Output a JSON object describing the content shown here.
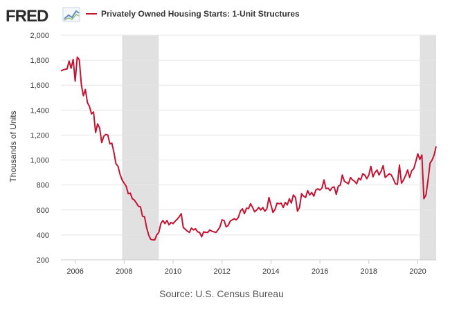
{
  "header": {
    "logo_text": "FRED",
    "logo_icon": "line-chart-icon"
  },
  "chart_data": {
    "type": "line",
    "title": "",
    "xlabel": "",
    "ylabel": "Thousands of Units",
    "series": [
      {
        "name": "Privately Owned Housing Starts: 1-Unit Structures",
        "color": "#c41230",
        "points": [
          [
            "2005-06",
            1713
          ],
          [
            "2005-07",
            1722
          ],
          [
            "2005-08",
            1727
          ],
          [
            "2005-09",
            1729
          ],
          [
            "2005-10",
            1793
          ],
          [
            "2005-11",
            1735
          ],
          [
            "2005-12",
            1806
          ],
          [
            "2006-01",
            1632
          ],
          [
            "2006-02",
            1825
          ],
          [
            "2006-03",
            1805
          ],
          [
            "2006-04",
            1605
          ],
          [
            "2006-05",
            1515
          ],
          [
            "2006-06",
            1565
          ],
          [
            "2006-07",
            1460
          ],
          [
            "2006-08",
            1430
          ],
          [
            "2006-09",
            1370
          ],
          [
            "2006-10",
            1385
          ],
          [
            "2006-11",
            1220
          ],
          [
            "2006-12",
            1290
          ],
          [
            "2007-01",
            1255
          ],
          [
            "2007-02",
            1140
          ],
          [
            "2007-03",
            1190
          ],
          [
            "2007-04",
            1205
          ],
          [
            "2007-05",
            1200
          ],
          [
            "2007-06",
            1130
          ],
          [
            "2007-07",
            1135
          ],
          [
            "2007-08",
            1060
          ],
          [
            "2007-09",
            970
          ],
          [
            "2007-10",
            950
          ],
          [
            "2007-11",
            885
          ],
          [
            "2007-12",
            840
          ],
          [
            "2008-01",
            815
          ],
          [
            "2008-02",
            790
          ],
          [
            "2008-03",
            730
          ],
          [
            "2008-04",
            735
          ],
          [
            "2008-05",
            690
          ],
          [
            "2008-06",
            680
          ],
          [
            "2008-07",
            655
          ],
          [
            "2008-08",
            630
          ],
          [
            "2008-09",
            625
          ],
          [
            "2008-10",
            550
          ],
          [
            "2008-11",
            545
          ],
          [
            "2008-12",
            460
          ],
          [
            "2009-01",
            400
          ],
          [
            "2009-02",
            365
          ],
          [
            "2009-03",
            360
          ],
          [
            "2009-04",
            360
          ],
          [
            "2009-05",
            400
          ],
          [
            "2009-06",
            420
          ],
          [
            "2009-07",
            490
          ],
          [
            "2009-08",
            515
          ],
          [
            "2009-09",
            490
          ],
          [
            "2009-10",
            515
          ],
          [
            "2009-11",
            480
          ],
          [
            "2009-12",
            500
          ],
          [
            "2010-01",
            490
          ],
          [
            "2010-02",
            510
          ],
          [
            "2010-03",
            525
          ],
          [
            "2010-04",
            545
          ],
          [
            "2010-05",
            570
          ],
          [
            "2010-06",
            460
          ],
          [
            "2010-07",
            445
          ],
          [
            "2010-08",
            430
          ],
          [
            "2010-09",
            420
          ],
          [
            "2010-10",
            455
          ],
          [
            "2010-11",
            440
          ],
          [
            "2010-12",
            450
          ],
          [
            "2011-01",
            425
          ],
          [
            "2011-02",
            420
          ],
          [
            "2011-03",
            385
          ],
          [
            "2011-04",
            425
          ],
          [
            "2011-05",
            420
          ],
          [
            "2011-06",
            420
          ],
          [
            "2011-07",
            440
          ],
          [
            "2011-08",
            430
          ],
          [
            "2011-09",
            425
          ],
          [
            "2011-10",
            420
          ],
          [
            "2011-11",
            440
          ],
          [
            "2011-12",
            465
          ],
          [
            "2012-01",
            520
          ],
          [
            "2012-02",
            515
          ],
          [
            "2012-03",
            465
          ],
          [
            "2012-04",
            475
          ],
          [
            "2012-05",
            510
          ],
          [
            "2012-06",
            520
          ],
          [
            "2012-07",
            530
          ],
          [
            "2012-08",
            520
          ],
          [
            "2012-09",
            540
          ],
          [
            "2012-10",
            590
          ],
          [
            "2012-11",
            610
          ],
          [
            "2012-12",
            570
          ],
          [
            "2013-01",
            615
          ],
          [
            "2013-02",
            610
          ],
          [
            "2013-03",
            650
          ],
          [
            "2013-04",
            620
          ],
          [
            "2013-05",
            585
          ],
          [
            "2013-06",
            600
          ],
          [
            "2013-07",
            620
          ],
          [
            "2013-08",
            600
          ],
          [
            "2013-09",
            620
          ],
          [
            "2013-10",
            590
          ],
          [
            "2013-11",
            610
          ],
          [
            "2013-12",
            700
          ],
          [
            "2014-01",
            640
          ],
          [
            "2014-02",
            580
          ],
          [
            "2014-03",
            605
          ],
          [
            "2014-04",
            655
          ],
          [
            "2014-05",
            650
          ],
          [
            "2014-06",
            655
          ],
          [
            "2014-07",
            620
          ],
          [
            "2014-08",
            660
          ],
          [
            "2014-09",
            640
          ],
          [
            "2014-10",
            690
          ],
          [
            "2014-11",
            655
          ],
          [
            "2014-12",
            720
          ],
          [
            "2015-01",
            700
          ],
          [
            "2015-02",
            590
          ],
          [
            "2015-03",
            620
          ],
          [
            "2015-04",
            730
          ],
          [
            "2015-05",
            710
          ],
          [
            "2015-06",
            700
          ],
          [
            "2015-07",
            755
          ],
          [
            "2015-08",
            720
          ],
          [
            "2015-09",
            740
          ],
          [
            "2015-10",
            710
          ],
          [
            "2015-11",
            760
          ],
          [
            "2015-12",
            770
          ],
          [
            "2016-01",
            760
          ],
          [
            "2016-02",
            775
          ],
          [
            "2016-03",
            840
          ],
          [
            "2016-04",
            770
          ],
          [
            "2016-05",
            775
          ],
          [
            "2016-06",
            755
          ],
          [
            "2016-07",
            780
          ],
          [
            "2016-08",
            785
          ],
          [
            "2016-09",
            725
          ],
          [
            "2016-10",
            790
          ],
          [
            "2016-11",
            800
          ],
          [
            "2016-12",
            880
          ],
          [
            "2017-01",
            830
          ],
          [
            "2017-02",
            820
          ],
          [
            "2017-03",
            810
          ],
          [
            "2017-04",
            860
          ],
          [
            "2017-05",
            840
          ],
          [
            "2017-06",
            830
          ],
          [
            "2017-07",
            810
          ],
          [
            "2017-08",
            855
          ],
          [
            "2017-09",
            840
          ],
          [
            "2017-10",
            890
          ],
          [
            "2017-11",
            880
          ],
          [
            "2017-12",
            850
          ],
          [
            "2018-01",
            880
          ],
          [
            "2018-02",
            950
          ],
          [
            "2018-03",
            865
          ],
          [
            "2018-04",
            900
          ],
          [
            "2018-05",
            920
          ],
          [
            "2018-06",
            880
          ],
          [
            "2018-07",
            910
          ],
          [
            "2018-08",
            955
          ],
          [
            "2018-09",
            860
          ],
          [
            "2018-10",
            875
          ],
          [
            "2018-11",
            890
          ],
          [
            "2018-12",
            880
          ],
          [
            "2019-01",
            850
          ],
          [
            "2019-02",
            810
          ],
          [
            "2019-03",
            805
          ],
          [
            "2019-04",
            960
          ],
          [
            "2019-05",
            815
          ],
          [
            "2019-06",
            840
          ],
          [
            "2019-07",
            875
          ],
          [
            "2019-08",
            920
          ],
          [
            "2019-09",
            860
          ],
          [
            "2019-10",
            915
          ],
          [
            "2019-11",
            930
          ],
          [
            "2019-12",
            985
          ],
          [
            "2020-01",
            1050
          ],
          [
            "2020-02",
            1005
          ],
          [
            "2020-03",
            1040
          ],
          [
            "2020-04",
            690
          ],
          [
            "2020-05",
            720
          ],
          [
            "2020-06",
            835
          ],
          [
            "2020-07",
            975
          ],
          [
            "2020-08",
            1000
          ],
          [
            "2020-09",
            1040
          ],
          [
            "2020-10",
            1110
          ]
        ]
      }
    ],
    "ylim": [
      200,
      2000
    ],
    "y_ticks": [
      200,
      400,
      600,
      800,
      1000,
      1200,
      1400,
      1600,
      1800,
      2000
    ],
    "y_tick_labels": [
      "200",
      "400",
      "600",
      "800",
      "1,000",
      "1,200",
      "1,400",
      "1,600",
      "1,800",
      "2,000"
    ],
    "xlim": [
      "2005-06",
      "2020-10"
    ],
    "x_ticks": [
      "2006-01",
      "2008-01",
      "2010-01",
      "2012-01",
      "2014-01",
      "2016-01",
      "2018-01",
      "2020-01"
    ],
    "x_tick_labels": [
      "2006",
      "2008",
      "2010",
      "2012",
      "2014",
      "2016",
      "2018",
      "2020"
    ],
    "recessions": [
      [
        "2007-12",
        "2009-06"
      ],
      [
        "2020-02",
        "2020-10"
      ]
    ],
    "recession_color": "#e1e1e1",
    "grid": "horizontal",
    "legend_position": "top"
  },
  "source": "Source: U.S. Census Bureau"
}
